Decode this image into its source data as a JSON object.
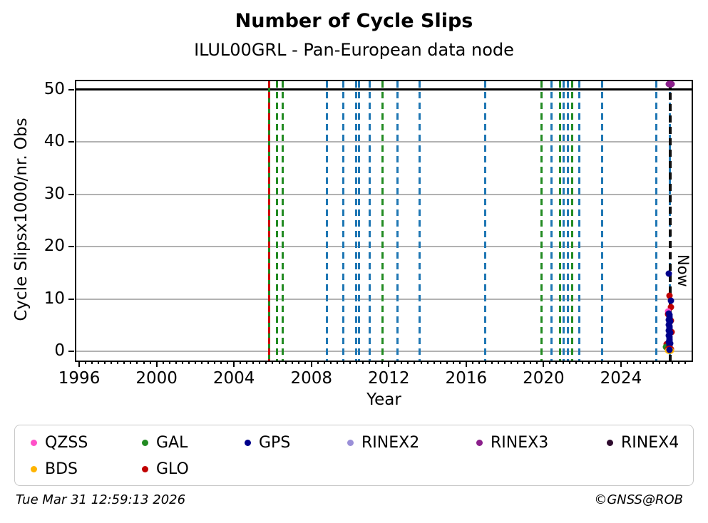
{
  "header": {
    "title": "Number of Cycle Slips",
    "subtitle": "ILUL00GRL - Pan-European data node"
  },
  "footer": {
    "timestamp": "Tue Mar 31 12:59:13 2026",
    "credit": "©GNSS@ROB"
  },
  "chart_data": {
    "type": "scatter",
    "title": "Number of Cycle Slips",
    "subtitle": "ILUL00GRL - Pan-European data node",
    "xlabel": "Year",
    "ylabel": "Cycle Slipsx1000/nr. Obs",
    "xlim": [
      1995.85,
      2027.65
    ],
    "ylim": [
      -1.75,
      51.6
    ],
    "xticks": [
      1996,
      2000,
      2004,
      2008,
      2012,
      2016,
      2020,
      2024
    ],
    "x_minor_step_years": 0.3333,
    "yticks": [
      0,
      10,
      20,
      30,
      40,
      50
    ],
    "gridlines_y": [
      0,
      10,
      20,
      30,
      40
    ],
    "grid": "horizontal-gray",
    "threshold_line_y": 50,
    "now_label": "Now",
    "now_year": 2026.55,
    "legend_position": "below",
    "colors": {
      "QZSS": "#ff50c8",
      "GAL": "#228b22",
      "GPS": "#00008b",
      "RINEX2": "#9a8fd8",
      "RINEX3": "#8b1f8b",
      "RINEX4": "#2e0b2e",
      "BDS": "#ffb400",
      "GLO": "#c00000",
      "GPS_LINE": "#1f77b4",
      "GLO_LINE": "#d10000",
      "NOW": "#111111"
    },
    "legend": [
      {
        "label": "QZSS",
        "color_key": "QZSS"
      },
      {
        "label": "GAL",
        "color_key": "GAL"
      },
      {
        "label": "GPS",
        "color_key": "GPS"
      },
      {
        "label": "RINEX2",
        "color_key": "RINEX2"
      },
      {
        "label": "RINEX3",
        "color_key": "RINEX3"
      },
      {
        "label": "RINEX4",
        "color_key": "RINEX4"
      },
      {
        "label": "BDS",
        "color_key": "BDS"
      },
      {
        "label": "GLO",
        "color_key": "GLO"
      }
    ],
    "event_lines": [
      {
        "year": 2005.8,
        "color_key": "GAL",
        "style": "solid",
        "width": 3
      },
      {
        "year": 2005.8,
        "color_key": "GLO_LINE",
        "style": "dashed",
        "width": 3
      },
      {
        "year": 2006.22,
        "color_key": "GAL",
        "style": "dashed",
        "width": 3
      },
      {
        "year": 2006.52,
        "color_key": "GAL",
        "style": "dashed",
        "width": 3
      },
      {
        "year": 2008.82,
        "color_key": "GPS_LINE",
        "style": "dashed",
        "width": 3
      },
      {
        "year": 2009.65,
        "color_key": "GPS_LINE",
        "style": "dashed",
        "width": 3
      },
      {
        "year": 2010.33,
        "color_key": "GPS_LINE",
        "style": "dashed",
        "width": 3
      },
      {
        "year": 2010.46,
        "color_key": "GPS_LINE",
        "style": "dashed",
        "width": 3
      },
      {
        "year": 2011.03,
        "color_key": "GPS_LINE",
        "style": "dashed",
        "width": 3
      },
      {
        "year": 2011.68,
        "color_key": "GAL",
        "style": "dashed",
        "width": 3
      },
      {
        "year": 2012.45,
        "color_key": "GPS_LINE",
        "style": "dashed",
        "width": 3
      },
      {
        "year": 2013.6,
        "color_key": "GPS_LINE",
        "style": "dashed",
        "width": 3
      },
      {
        "year": 2016.97,
        "color_key": "GPS_LINE",
        "style": "dashed",
        "width": 3
      },
      {
        "year": 2019.9,
        "color_key": "GAL",
        "style": "dashed",
        "width": 3
      },
      {
        "year": 2020.4,
        "color_key": "GPS_LINE",
        "style": "dashed",
        "width": 3
      },
      {
        "year": 2020.85,
        "color_key": "GAL",
        "style": "dashed",
        "width": 3
      },
      {
        "year": 2021.05,
        "color_key": "GPS_LINE",
        "style": "dashed",
        "width": 3
      },
      {
        "year": 2021.25,
        "color_key": "GPS_LINE",
        "style": "dashed",
        "width": 3
      },
      {
        "year": 2021.47,
        "color_key": "GAL",
        "style": "dashed",
        "width": 3
      },
      {
        "year": 2021.86,
        "color_key": "GPS_LINE",
        "style": "dashed",
        "width": 3
      },
      {
        "year": 2023.02,
        "color_key": "GPS_LINE",
        "style": "dashed",
        "width": 3
      },
      {
        "year": 2025.83,
        "color_key": "GPS_LINE",
        "style": "dashed",
        "width": 3
      },
      {
        "year": 2026.52,
        "color_key": "GPS_LINE",
        "style": "dashed",
        "width": 3
      },
      {
        "year": 2026.55,
        "color_key": "NOW",
        "style": "dashed",
        "width": 4
      }
    ],
    "points": [
      {
        "year": 2026.55,
        "value": 51.0,
        "system": "RINEX3",
        "size": "large"
      },
      {
        "year": 2026.46,
        "value": 14.9,
        "system": "GPS"
      },
      {
        "year": 2026.5,
        "value": 10.6,
        "system": "GLO"
      },
      {
        "year": 2026.57,
        "value": 9.7,
        "system": "GPS"
      },
      {
        "year": 2026.58,
        "value": 8.4,
        "system": "GLO"
      },
      {
        "year": 2026.42,
        "value": 7.7,
        "system": "QZSS"
      },
      {
        "year": 2026.45,
        "value": 7.1,
        "system": "GLO"
      },
      {
        "year": 2026.62,
        "value": 3.7,
        "system": "GLO"
      },
      {
        "year": 2026.36,
        "value": 1.4,
        "system": "GLO"
      },
      {
        "year": 2026.57,
        "value": 5.9,
        "system": "GLO"
      },
      {
        "year": 2026.32,
        "value": 0.9,
        "system": "GAL"
      },
      {
        "year": 2026.48,
        "value": 7.2,
        "system": "GPS"
      },
      {
        "year": 2026.52,
        "value": 6.9,
        "system": "GPS"
      },
      {
        "year": 2026.49,
        "value": 6.6,
        "system": "GPS"
      },
      {
        "year": 2026.51,
        "value": 6.3,
        "system": "GPS"
      },
      {
        "year": 2026.47,
        "value": 6.0,
        "system": "GPS"
      },
      {
        "year": 2026.53,
        "value": 5.7,
        "system": "GPS"
      },
      {
        "year": 2026.5,
        "value": 5.4,
        "system": "GPS"
      },
      {
        "year": 2026.48,
        "value": 5.1,
        "system": "GPS"
      },
      {
        "year": 2026.52,
        "value": 4.8,
        "system": "GPS"
      },
      {
        "year": 2026.49,
        "value": 4.5,
        "system": "GPS"
      },
      {
        "year": 2026.51,
        "value": 4.2,
        "system": "GPS"
      },
      {
        "year": 2026.47,
        "value": 3.9,
        "system": "GPS"
      },
      {
        "year": 2026.53,
        "value": 3.6,
        "system": "GPS"
      },
      {
        "year": 2026.5,
        "value": 3.3,
        "system": "GPS"
      },
      {
        "year": 2026.48,
        "value": 3.0,
        "system": "GPS"
      },
      {
        "year": 2026.52,
        "value": 2.7,
        "system": "GPS"
      },
      {
        "year": 2026.49,
        "value": 2.4,
        "system": "GPS"
      },
      {
        "year": 2026.51,
        "value": 2.1,
        "system": "GPS"
      },
      {
        "year": 2026.47,
        "value": 1.8,
        "system": "GPS"
      },
      {
        "year": 2026.53,
        "value": 1.5,
        "system": "GPS"
      },
      {
        "year": 2026.5,
        "value": 1.2,
        "system": "GPS"
      },
      {
        "year": 2026.49,
        "value": 0.9,
        "system": "GPS"
      },
      {
        "year": 2026.51,
        "value": 0.6,
        "system": "GPS"
      },
      {
        "year": 2026.5,
        "value": 0.4,
        "system": "GLO",
        "size": "large"
      },
      {
        "year": 2026.5,
        "value": 0.1,
        "system": "BDS",
        "size": "large"
      },
      {
        "year": 2026.5,
        "value": 0.35,
        "system": "GPS"
      }
    ]
  }
}
